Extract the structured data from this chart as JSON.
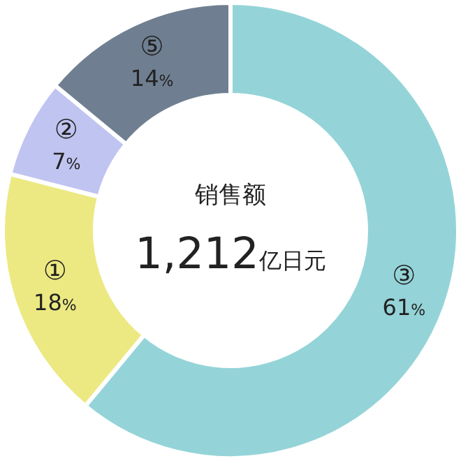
{
  "chart_data": {
    "type": "donut",
    "title": "销售额",
    "subtitle": "1,212亿日元",
    "categories": [
      "③",
      "①",
      "②",
      "⑤"
    ],
    "values": [
      61,
      18,
      7,
      14
    ],
    "colors": [
      "#94d4d8",
      "#ece982",
      "#c0c4f0",
      "#6f7f91"
    ],
    "value_labels": [
      "61%",
      "18%",
      "7%",
      "14%"
    ]
  }
}
